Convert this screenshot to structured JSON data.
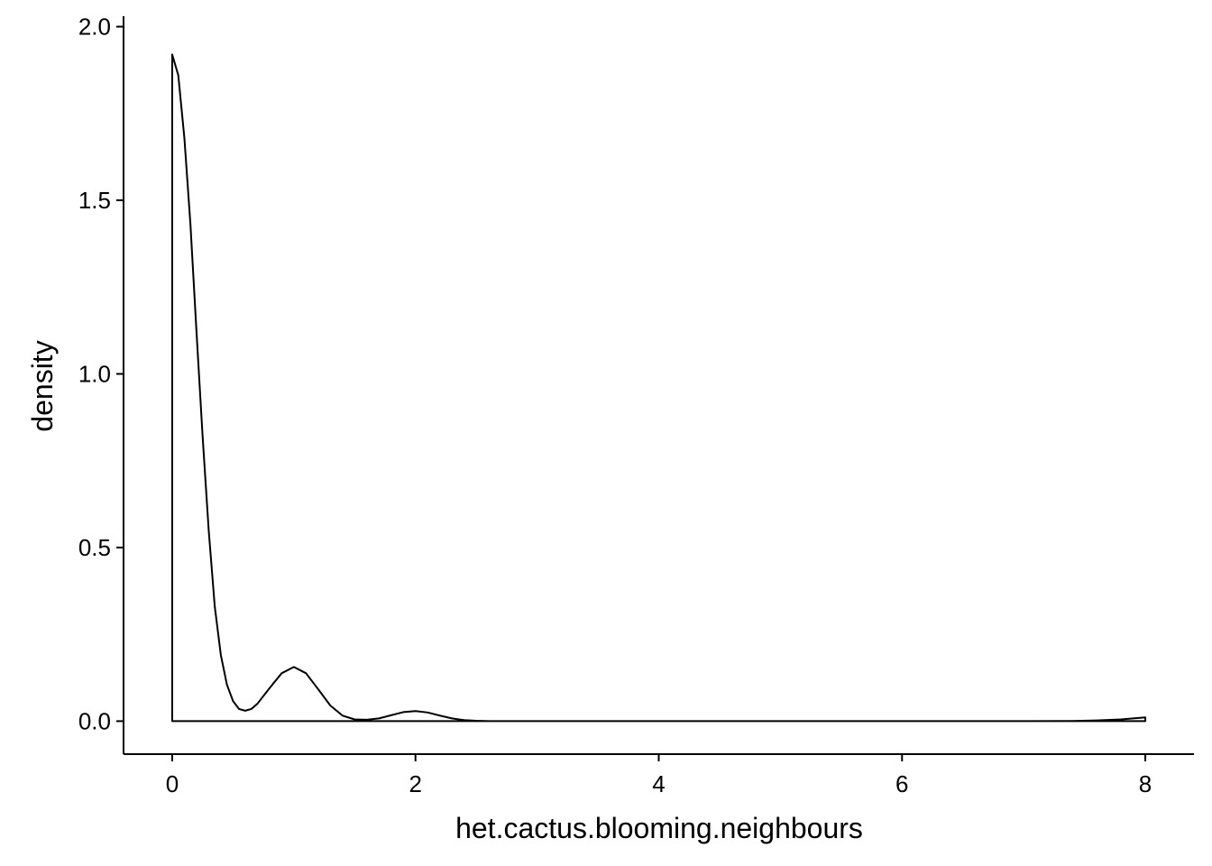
{
  "chart_data": {
    "type": "area",
    "title": "",
    "xlabel": "het.cactus.blooming.neighbours",
    "ylabel": "density",
    "xlim": [
      -0.4,
      8.4
    ],
    "ylim": [
      -0.095,
      2.03
    ],
    "x_ticks": [
      0,
      2,
      4,
      6,
      8
    ],
    "x_tick_labels": [
      "0",
      "2",
      "4",
      "6",
      "8"
    ],
    "y_ticks": [
      0.0,
      0.5,
      1.0,
      1.5,
      2.0
    ],
    "y_tick_labels": [
      "0.0",
      "0.5",
      "1.0",
      "1.5",
      "2.0"
    ],
    "grid": false,
    "legend": "none",
    "line_color": "#000000",
    "fill": "none",
    "series": [
      {
        "x": [
          0.0,
          0.05,
          0.1,
          0.15,
          0.2,
          0.25,
          0.3,
          0.35,
          0.4,
          0.45,
          0.5,
          0.55,
          0.6,
          0.65,
          0.7,
          0.8,
          0.9,
          1.0,
          1.1,
          1.2,
          1.3,
          1.4,
          1.5,
          1.6,
          1.7,
          1.8,
          1.9,
          2.0,
          2.1,
          2.2,
          2.3,
          2.4,
          2.5,
          2.6,
          3.0,
          4.0,
          5.0,
          6.0,
          7.0,
          7.4,
          7.6,
          7.8,
          7.9,
          8.0
        ],
        "y": [
          1.92,
          1.86,
          1.68,
          1.43,
          1.12,
          0.82,
          0.55,
          0.33,
          0.19,
          0.105,
          0.058,
          0.035,
          0.03,
          0.035,
          0.05,
          0.095,
          0.138,
          0.156,
          0.138,
          0.092,
          0.045,
          0.016,
          0.005,
          0.004,
          0.008,
          0.017,
          0.026,
          0.029,
          0.025,
          0.016,
          0.008,
          0.003,
          0.001,
          0.0,
          0.0,
          0.0,
          0.0,
          0.0,
          0.0,
          0.0005,
          0.002,
          0.005,
          0.008,
          0.011
        ]
      }
    ]
  }
}
